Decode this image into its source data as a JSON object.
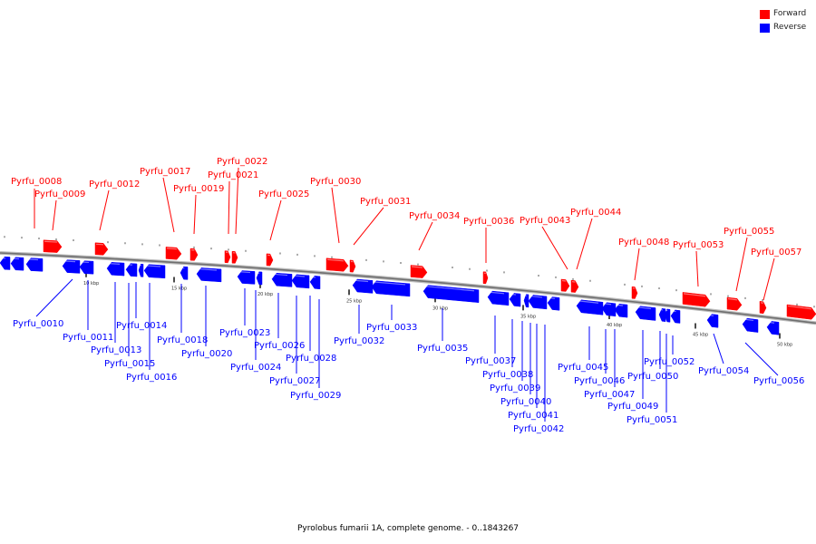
{
  "legend": {
    "forward_label": "Forward",
    "reverse_label": "Reverse",
    "forward_color": "#ff0000",
    "reverse_color": "#0000ff"
  },
  "caption": "Pyrolobus fumarii 1A, complete genome. - 0..1843267",
  "colors": {
    "forward": "#ff0000",
    "reverse": "#0000ff",
    "backbone": "#8a8a8a"
  },
  "ticks": [
    "10 kbp",
    "15 kbp",
    "20 kbp",
    "25 kbp",
    "30 kbp",
    "35 kbp",
    "40 kbp",
    "45 kbp",
    "50 kbp"
  ],
  "forward_genes": [
    "Pyrfu_0008",
    "Pyrfu_0009",
    "Pyrfu_0012",
    "Pyrfu_0017",
    "Pyrfu_0019",
    "Pyrfu_0021",
    "Pyrfu_0022",
    "Pyrfu_0025",
    "Pyrfu_0030",
    "Pyrfu_0031",
    "Pyrfu_0034",
    "Pyrfu_0036",
    "Pyrfu_0043",
    "Pyrfu_0044",
    "Pyrfu_0048",
    "Pyrfu_0053",
    "Pyrfu_0055",
    "Pyrfu_0057"
  ],
  "reverse_genes": [
    "Pyrfu_0010",
    "Pyrfu_0011",
    "Pyrfu_0013",
    "Pyrfu_0014",
    "Pyrfu_0015",
    "Pyrfu_0016",
    "Pyrfu_0018",
    "Pyrfu_0020",
    "Pyrfu_0023",
    "Pyrfu_0024",
    "Pyrfu_0026",
    "Pyrfu_0027",
    "Pyrfu_0028",
    "Pyrfu_0029",
    "Pyrfu_0032",
    "Pyrfu_0033",
    "Pyrfu_0035",
    "Pyrfu_0037",
    "Pyrfu_0038",
    "Pyrfu_0039",
    "Pyrfu_0040",
    "Pyrfu_0041",
    "Pyrfu_0042",
    "Pyrfu_0045",
    "Pyrfu_0046",
    "Pyrfu_0047",
    "Pyrfu_0049",
    "Pyrfu_0050",
    "Pyrfu_0051",
    "Pyrfu_0052",
    "Pyrfu_0054",
    "Pyrfu_0056"
  ]
}
